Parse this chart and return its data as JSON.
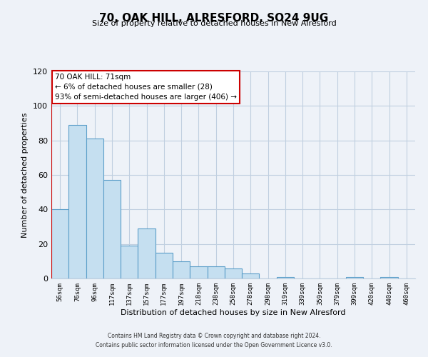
{
  "title": "70, OAK HILL, ALRESFORD, SO24 9UG",
  "subtitle": "Size of property relative to detached houses in New Alresford",
  "xlabel": "Distribution of detached houses by size in New Alresford",
  "ylabel": "Number of detached properties",
  "bar_labels": [
    "56sqm",
    "76sqm",
    "96sqm",
    "117sqm",
    "137sqm",
    "157sqm",
    "177sqm",
    "197sqm",
    "218sqm",
    "238sqm",
    "258sqm",
    "278sqm",
    "298sqm",
    "319sqm",
    "339sqm",
    "359sqm",
    "379sqm",
    "399sqm",
    "420sqm",
    "440sqm",
    "460sqm"
  ],
  "bar_values": [
    40,
    89,
    81,
    57,
    19,
    29,
    15,
    10,
    7,
    7,
    6,
    3,
    0,
    1,
    0,
    0,
    0,
    1,
    0,
    1,
    0
  ],
  "bar_color": "#c5dff0",
  "bar_edge_color": "#5b9ec9",
  "marker_line_color": "#cc0000",
  "ylim": [
    0,
    120
  ],
  "yticks": [
    0,
    20,
    40,
    60,
    80,
    100,
    120
  ],
  "annotation_line1": "70 OAK HILL: 71sqm",
  "annotation_line2": "← 6% of detached houses are smaller (28)",
  "annotation_line3": "93% of semi-detached houses are larger (406) →",
  "annotation_box_color": "#cc0000",
  "annotation_box_fill": "#ffffff",
  "footer_line1": "Contains HM Land Registry data © Crown copyright and database right 2024.",
  "footer_line2": "Contains public sector information licensed under the Open Government Licence v3.0.",
  "bg_color": "#eef2f8",
  "plot_bg_color": "#eef2f8",
  "grid_color": "#c0cfe0"
}
